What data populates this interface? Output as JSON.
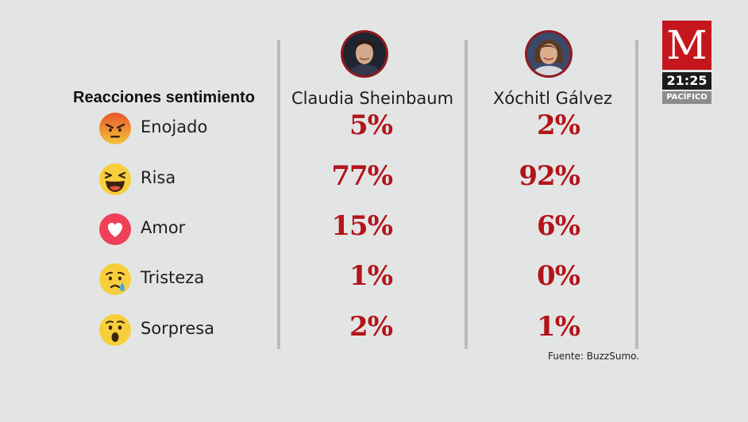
{
  "section_title": "Reacciones sentimiento",
  "candidates": [
    {
      "name": "Claudia Sheinbaum"
    },
    {
      "name": "Xóchitl Gálvez"
    }
  ],
  "rows": [
    {
      "label": "Enojado",
      "icon": "angry-icon",
      "a": "5%",
      "b": "2%"
    },
    {
      "label": "Risa",
      "icon": "laughing-icon",
      "a": "77%",
      "b": "92%"
    },
    {
      "label": "Amor",
      "icon": "heart-icon",
      "a": "15%",
      "b": "6%"
    },
    {
      "label": "Tristeza",
      "icon": "crying-icon",
      "a": "1%",
      "b": "0%"
    },
    {
      "label": "Sorpresa",
      "icon": "surprised-icon",
      "a": "2%",
      "b": "1%"
    }
  ],
  "source": "Fuente: BuzzSumo.",
  "logo": {
    "letter": "M",
    "time": "21:25",
    "zone": "PACÍFICO",
    "color": "#c4161c"
  },
  "colors": {
    "percent": "#b3141a",
    "background": "#e3e5e5"
  }
}
